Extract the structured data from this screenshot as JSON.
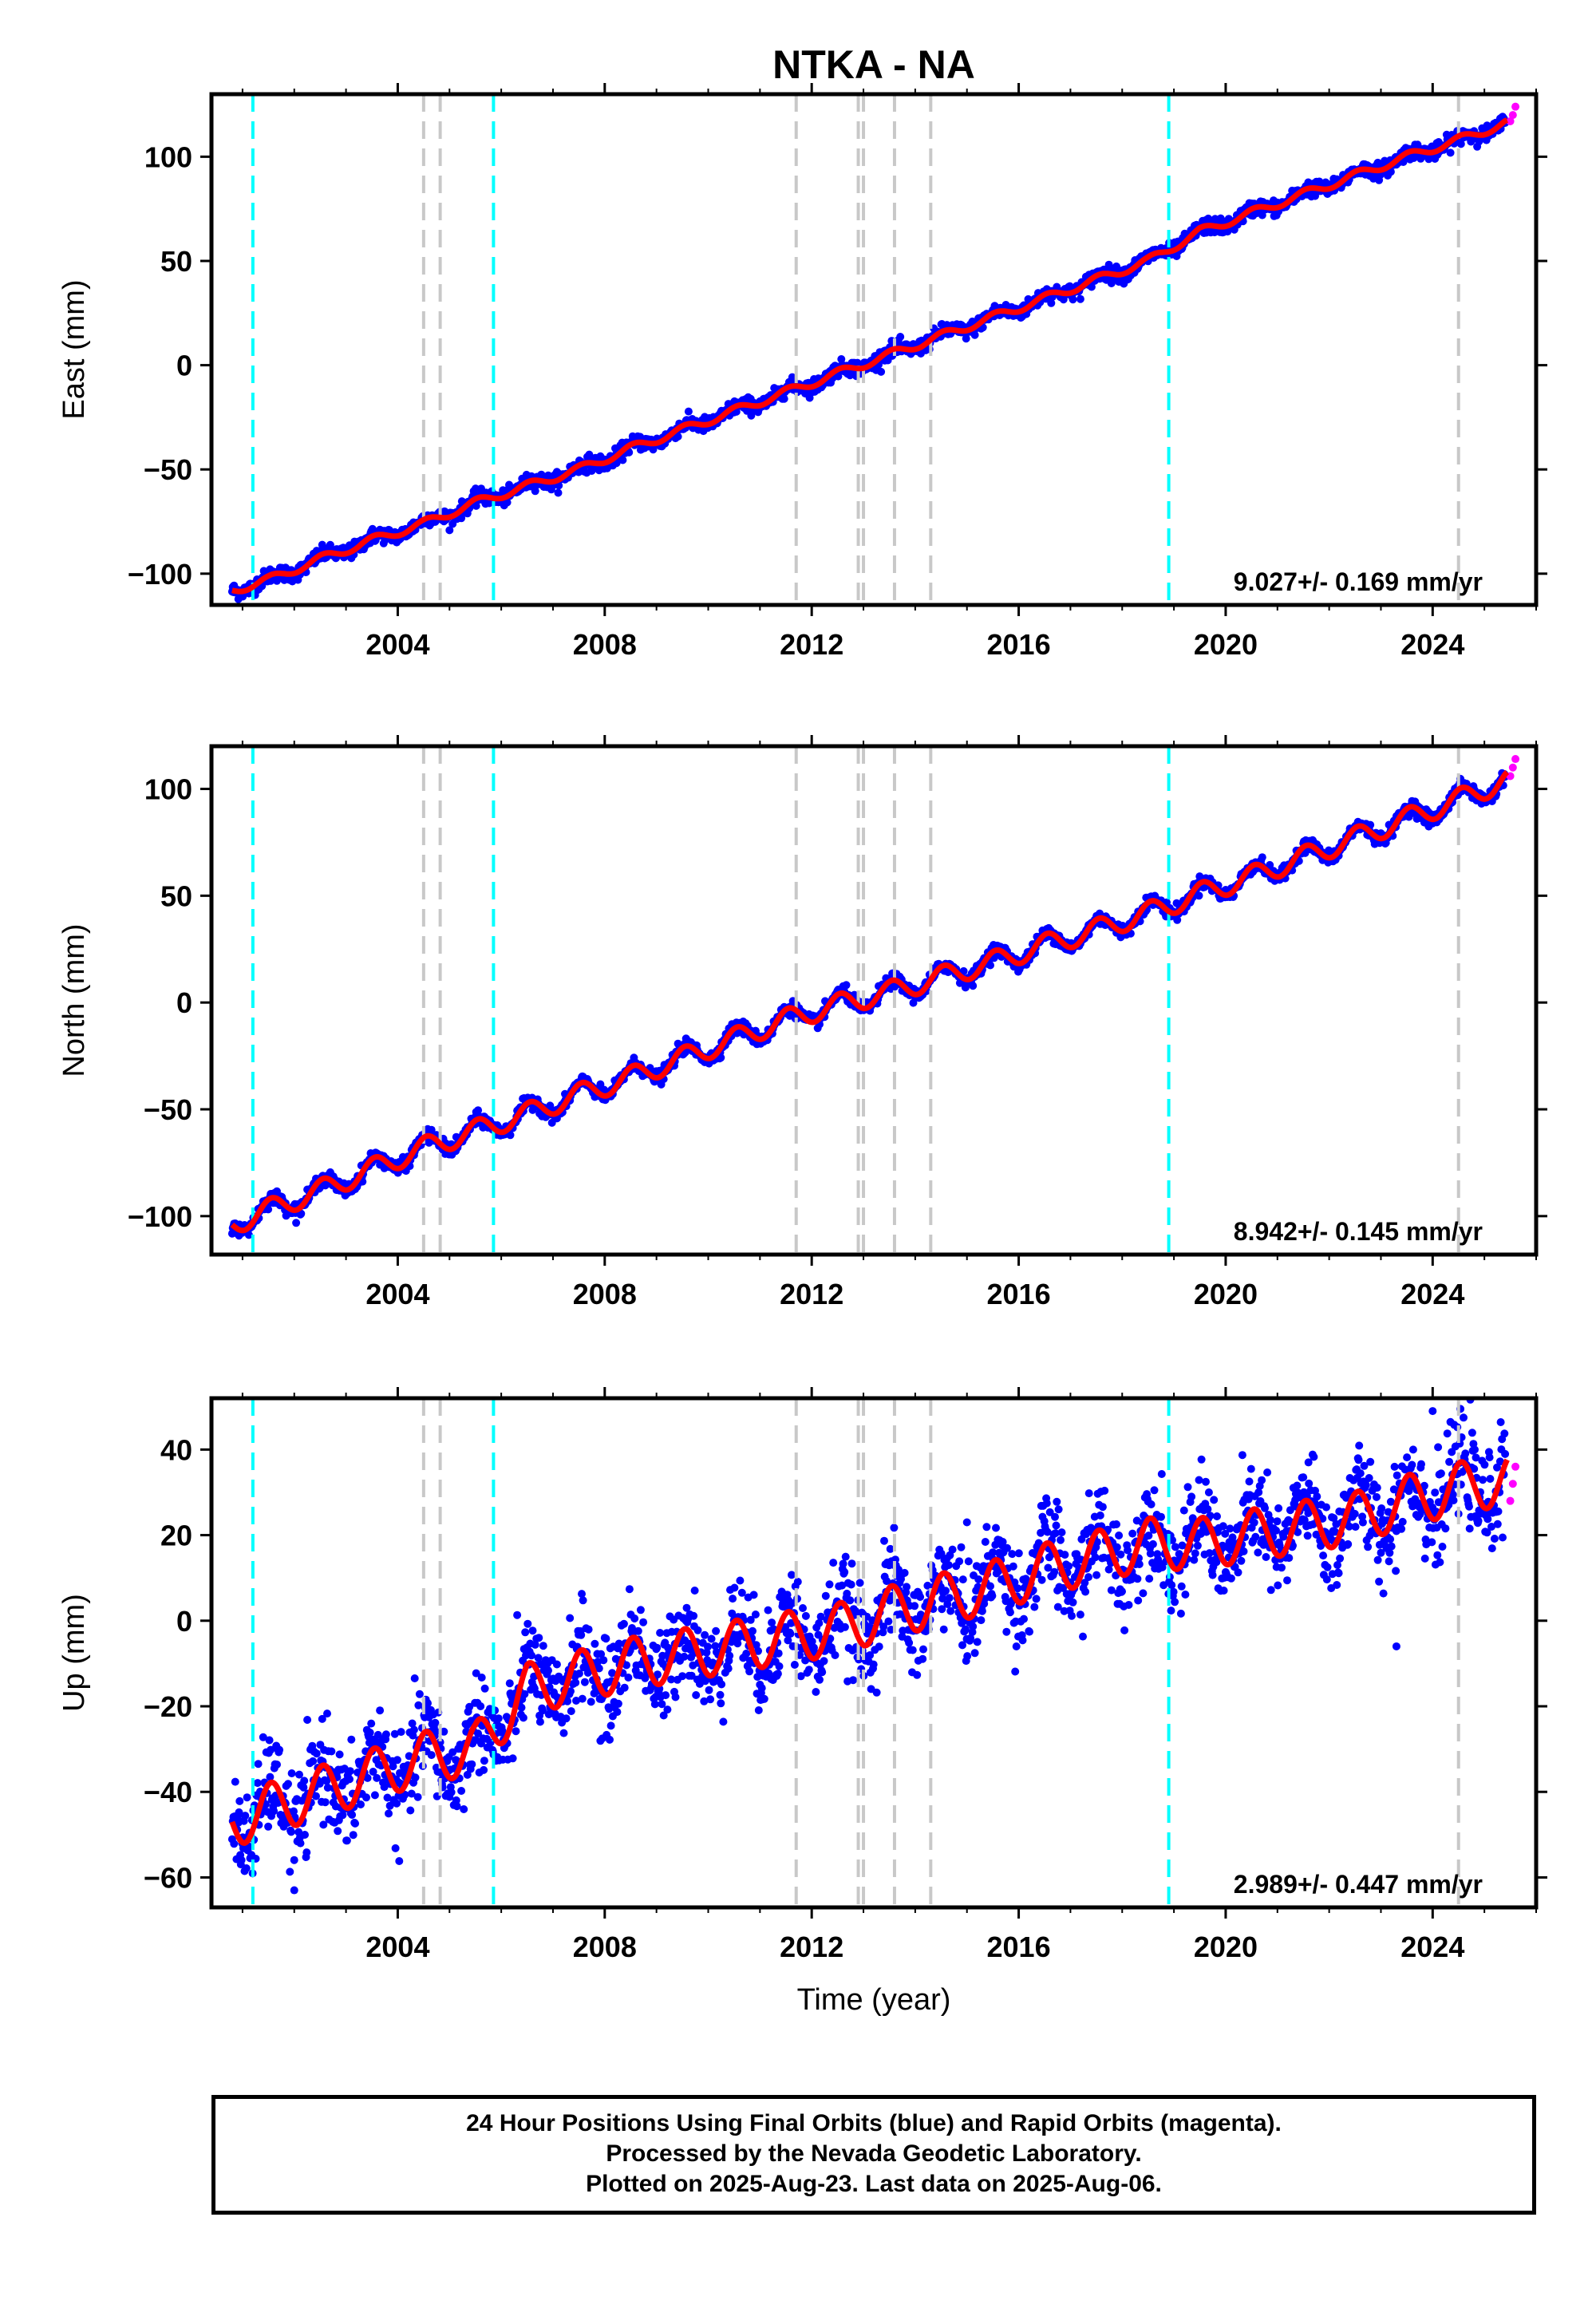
{
  "title": "NTKA - NA",
  "xlabel": "Time (year)",
  "caption": {
    "line1": "24 Hour Positions Using Final Orbits (blue) and Rapid Orbits (magenta).",
    "line2": "Processed by the Nevada Geodetic Laboratory.",
    "line3": "Plotted on 2025-Aug-23. Last data on 2025-Aug-06."
  },
  "colors": {
    "final_orbits": "#0000ff",
    "rapid_orbits": "#ff00ff",
    "model": "#ff0000",
    "equipment_change": "#c8c8c8",
    "earthquake": "#00ffff"
  },
  "chart_data": [
    {
      "type": "scatter",
      "name": "east",
      "title": "NTKA - NA",
      "ylabel": "East (mm)",
      "xlabel": "",
      "xlim": [
        2000.4,
        2026.0
      ],
      "ylim": [
        -115,
        130
      ],
      "xticks": [
        2004,
        2008,
        2012,
        2016,
        2020,
        2024
      ],
      "yticks": [
        -100,
        -50,
        0,
        50,
        100
      ],
      "rate_label": "9.027+/- 0.169 mm/yr",
      "series": [
        {
          "name": "Final Orbits (blue)",
          "x": [
            2000.8,
            2001.5,
            2002.5,
            2003.5,
            2004.5,
            2005.5,
            2006.5,
            2007.5,
            2008.5,
            2009.5,
            2010.5,
            2011.5,
            2012.5,
            2013.5,
            2014.5,
            2015.5,
            2016.5,
            2017.5,
            2018.5,
            2019.5,
            2020.5,
            2021.5,
            2022.5,
            2023.5,
            2024.5,
            2025.4
          ],
          "y": [
            -108,
            -103,
            -93,
            -84,
            -76,
            -66,
            -58,
            -50,
            -40,
            -31,
            -22,
            -13,
            -4,
            5,
            14,
            23,
            32,
            41,
            50,
            64,
            73,
            82,
            91,
            100,
            108,
            116
          ]
        },
        {
          "name": "Rapid Orbits (magenta)",
          "x": [
            2025.5,
            2025.55,
            2025.6
          ],
          "y": [
            117,
            120,
            124
          ]
        }
      ],
      "model": {
        "intercept_year": 2012.0,
        "intercept": -11.5,
        "slope": 9.027,
        "amplitude": 2.0
      }
    },
    {
      "type": "scatter",
      "name": "north",
      "ylabel": "North (mm)",
      "xlabel": "",
      "xlim": [
        2000.4,
        2026.0
      ],
      "ylim": [
        -118,
        120
      ],
      "xticks": [
        2004,
        2008,
        2012,
        2016,
        2020,
        2024
      ],
      "yticks": [
        -100,
        -50,
        0,
        50,
        100
      ],
      "rate_label": "8.942+/- 0.145 mm/yr",
      "series": [
        {
          "name": "Final Orbits (blue)",
          "x": [
            2000.8,
            2001.5,
            2002.5,
            2003.5,
            2004.5,
            2005.5,
            2006.5,
            2007.5,
            2008.5,
            2009.5,
            2010.5,
            2011.5,
            2012.5,
            2013.5,
            2014.5,
            2015.5,
            2016.5,
            2017.5,
            2018.5,
            2019.5,
            2020.5,
            2021.5,
            2022.5,
            2023.5,
            2024.5,
            2025.4
          ],
          "y": [
            -104,
            -97,
            -88,
            -78,
            -68,
            -60,
            -52,
            -43,
            -35,
            -26,
            -17,
            -8,
            -1,
            5,
            12,
            19,
            27,
            34,
            42,
            51,
            59,
            68,
            77,
            86,
            95,
            104
          ]
        },
        {
          "name": "Rapid Orbits (magenta)",
          "x": [
            2025.5,
            2025.55,
            2025.6
          ],
          "y": [
            106,
            110,
            114
          ]
        }
      ],
      "model": {
        "intercept_year": 2012.0,
        "intercept": -8.0,
        "slope": 8.942,
        "amplitude": 5.0
      }
    },
    {
      "type": "scatter",
      "name": "up",
      "ylabel": "Up (mm)",
      "xlabel": "Time (year)",
      "xlim": [
        2000.4,
        2026.0
      ],
      "ylim": [
        -67,
        52
      ],
      "xticks": [
        2004,
        2008,
        2012,
        2016,
        2020,
        2024
      ],
      "yticks": [
        -60,
        -40,
        -20,
        0,
        20,
        40
      ],
      "rate_label": "2.989+/- 0.447 mm/yr",
      "series": [
        {
          "name": "Final Orbits (blue)",
          "x": [
            2000.8,
            2001.5,
            2002.5,
            2003.5,
            2004.5,
            2005.5,
            2006.5,
            2007.5,
            2008.5,
            2009.5,
            2010.5,
            2011.5,
            2012.5,
            2013.5,
            2014.5,
            2015.5,
            2016.5,
            2017.5,
            2018.5,
            2019.5,
            2020.5,
            2021.5,
            2022.5,
            2023.5,
            2024.5,
            2025.4
          ],
          "y": [
            -47,
            -44,
            -40,
            -36,
            -32,
            -30,
            -16,
            -13,
            -10,
            -8,
            -6,
            -4,
            -2,
            2,
            5,
            8,
            12,
            15,
            18,
            18,
            20,
            22,
            24,
            28,
            31,
            33
          ]
        },
        {
          "name": "Rapid Orbits (magenta)",
          "x": [
            2025.5,
            2025.55,
            2025.6
          ],
          "y": [
            28,
            32,
            36
          ]
        }
      ],
      "model": {
        "intercept_year": 2012.0,
        "intercept": -5.0,
        "slope": 2.989,
        "amplitude": 6.0
      }
    }
  ],
  "vertical_lines": {
    "equipment_change": [
      2004.5,
      2004.82,
      2011.7,
      2012.9,
      2013.0,
      2013.6,
      2014.3,
      2024.5
    ],
    "earthquake": [
      2001.2,
      2005.85,
      2018.9
    ]
  }
}
